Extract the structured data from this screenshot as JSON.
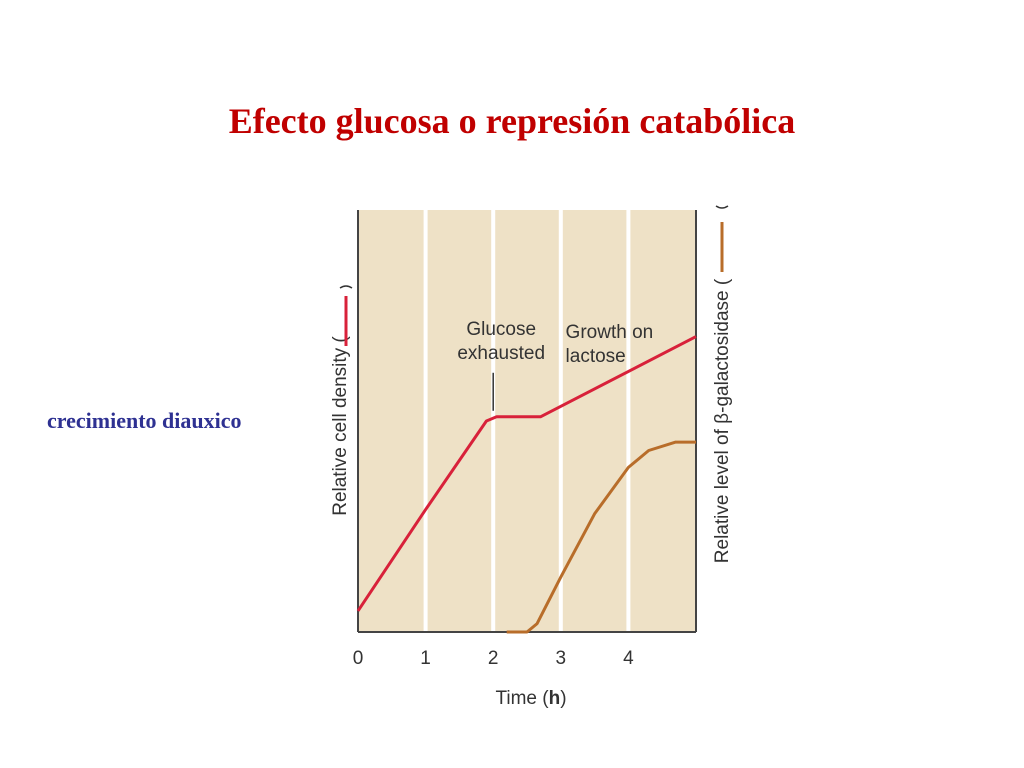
{
  "slide": {
    "title": "Efecto glucosa o represión catabólica",
    "side_label": "crecimiento diauxico"
  },
  "colors": {
    "title": "#c00000",
    "side_label": "#2e3192",
    "plot_background": "#eee1c6",
    "gridline": "#ffffff",
    "cell_density": "#d8213a",
    "beta_galactosidase": "#b86d2a"
  },
  "chart_data": {
    "type": "line",
    "xlabel_prefix": "Time (",
    "xlabel_unit": "h",
    "xlabel_suffix": ")",
    "ylabel_left": "Relative cell density (",
    "ylabel_right": "Relative level of β-galactosidase (",
    "x_ticks": [
      "0",
      "1",
      "2",
      "3",
      "4"
    ],
    "xlim": [
      0,
      5
    ],
    "ylim": [
      0,
      1
    ],
    "grid": true,
    "series": [
      {
        "key": "cell_density",
        "axis": "left",
        "points": [
          [
            0,
            0.05
          ],
          [
            1,
            0.29
          ],
          [
            1.9,
            0.5
          ],
          [
            2.05,
            0.51
          ],
          [
            2.7,
            0.51
          ],
          [
            5,
            0.7
          ]
        ]
      },
      {
        "key": "beta_galactosidase",
        "axis": "right",
        "points": [
          [
            2.2,
            0.0
          ],
          [
            2.5,
            0.0
          ],
          [
            2.65,
            0.02
          ],
          [
            3,
            0.13
          ],
          [
            3.5,
            0.28
          ],
          [
            4,
            0.39
          ],
          [
            4.3,
            0.43
          ],
          [
            4.7,
            0.45
          ],
          [
            5,
            0.45
          ]
        ]
      }
    ],
    "annotations": [
      {
        "lines": [
          "Glucose",
          "exhausted"
        ],
        "x": 2.0,
        "y": 0.51
      },
      {
        "lines": [
          "Growth on",
          "lactose"
        ],
        "x": 3.1,
        "y": 0.63
      }
    ]
  }
}
